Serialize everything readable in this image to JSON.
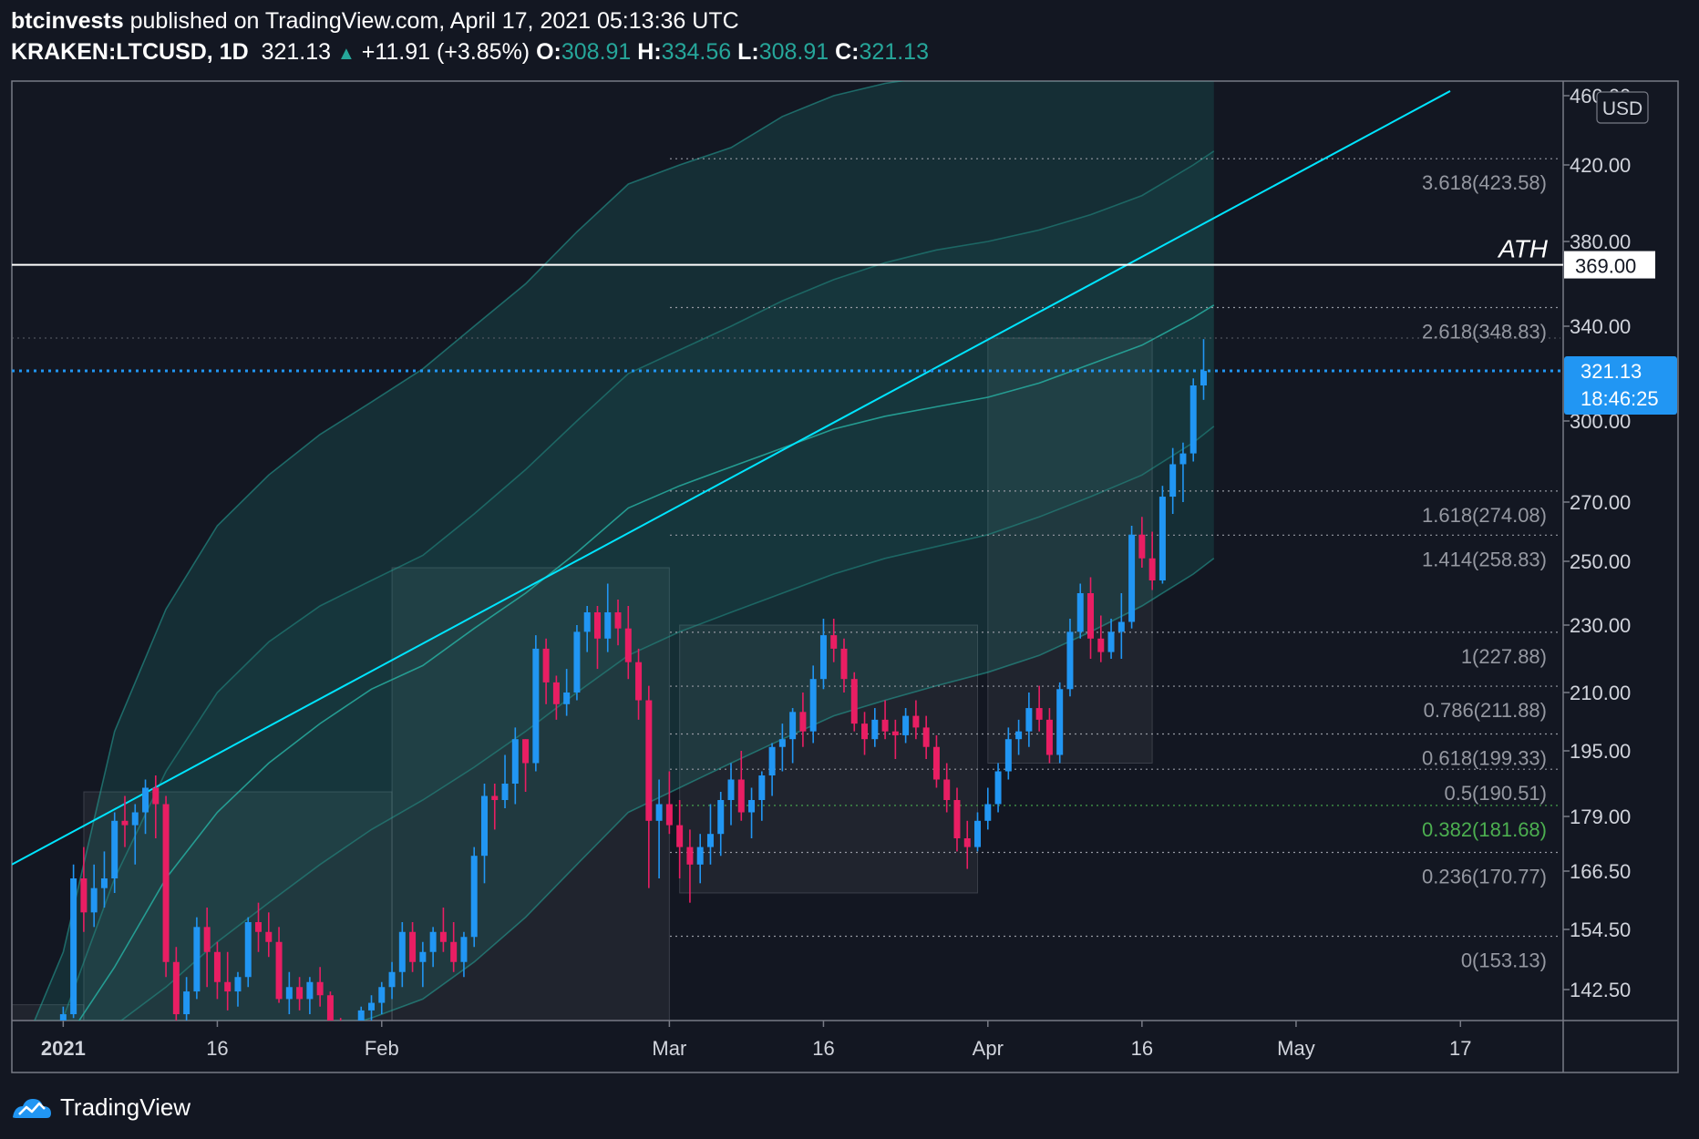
{
  "header": {
    "author": "btcinvests",
    "published_text": "published on TradingView.com, April 17, 2021 05:13:36 UTC",
    "symbol": "KRAKEN:LTCUSD, 1D",
    "last": "321.13",
    "change": "+11.91 (+3.85%)",
    "o_label": "O:",
    "o": "308.91",
    "h_label": "H:",
    "h": "334.56",
    "l_label": "L:",
    "l": "308.91",
    "c_label": "C:",
    "c": "321.13"
  },
  "footer": {
    "brand": "TradingView",
    "logo_icon": "tradingview-logo-icon"
  },
  "chart_data": {
    "type": "candlestick",
    "currency": "USD",
    "y_ticks": [
      142.5,
      154.5,
      166.5,
      179,
      195,
      210,
      230,
      250,
      270,
      300,
      340,
      380,
      420,
      460
    ],
    "y_tick_labels": [
      "142.50",
      "154.50",
      "166.50",
      "179.00",
      "195.00",
      "210.00",
      "230.00",
      "250.00",
      "270.00",
      "300.00",
      "340.00",
      "380.00",
      "420.00",
      "460.00"
    ],
    "x_ticks": [
      {
        "day": 0,
        "label": "2021"
      },
      {
        "day": 15,
        "label": "16"
      },
      {
        "day": 31,
        "label": "Feb"
      },
      {
        "day": 59,
        "label": "Mar"
      },
      {
        "day": 74,
        "label": "16"
      },
      {
        "day": 90,
        "label": "Apr"
      },
      {
        "day": 105,
        "label": "16"
      },
      {
        "day": 120,
        "label": "May"
      },
      {
        "day": 136,
        "label": "17"
      }
    ],
    "x_range_days": [
      -5,
      146
    ],
    "ath": {
      "label": "ATH",
      "value": 369,
      "value_label": "369.00"
    },
    "last_price": {
      "value": 321.13,
      "label": "321.13",
      "countdown": "18:46:25"
    },
    "fib_levels": [
      {
        "ratio": "0",
        "value": 153.13,
        "label": "0(153.13)"
      },
      {
        "ratio": "0.236",
        "value": 170.77,
        "label": "0.236(170.77)"
      },
      {
        "ratio": "0.382",
        "value": 181.68,
        "label": "0.382(181.68)"
      },
      {
        "ratio": "0.5",
        "value": 190.51,
        "label": "0.5(190.51)"
      },
      {
        "ratio": "0.618",
        "value": 199.33,
        "label": "0.618(199.33)"
      },
      {
        "ratio": "0.786",
        "value": 211.88,
        "label": "0.786(211.88)"
      },
      {
        "ratio": "1",
        "value": 227.88,
        "label": "1(227.88)"
      },
      {
        "ratio": "1.414",
        "value": 258.83,
        "label": "1.414(258.83)"
      },
      {
        "ratio": "1.618",
        "value": 274.08,
        "label": "1.618(274.08)"
      },
      {
        "ratio": "2.618",
        "value": 348.83,
        "label": "2.618(348.83)"
      },
      {
        "ratio": "3.618",
        "value": 423.58,
        "label": "3.618(423.58)"
      }
    ],
    "trendline": {
      "from": {
        "day": -5,
        "value": 168
      },
      "to": {
        "day": 135,
        "value": 463
      }
    },
    "boxes": [
      {
        "d0": -5,
        "d1": 2,
        "p0": 130,
        "p1": 138.5
      },
      {
        "d0": 2,
        "d1": 32,
        "p0": 130,
        "p1": 185
      },
      {
        "d0": 32,
        "d1": 59,
        "p0": 130,
        "p1": 248
      },
      {
        "d0": 60,
        "d1": 89,
        "p0": 162,
        "p1": 230
      },
      {
        "d0": 90,
        "d1": 106,
        "p0": 192,
        "p1": 335
      }
    ],
    "candles": [
      [
        -4,
        134,
        134,
        130,
        132
      ],
      [
        -3,
        132,
        133,
        129,
        131
      ],
      [
        -2,
        131,
        132,
        128,
        130
      ],
      [
        -1,
        130,
        131,
        127,
        129
      ],
      [
        0,
        129,
        138,
        128,
        136
      ],
      [
        1,
        136,
        168,
        135,
        165
      ],
      [
        2,
        165,
        172,
        154,
        158
      ],
      [
        3,
        158,
        168,
        155,
        163
      ],
      [
        4,
        163,
        171,
        159,
        165
      ],
      [
        5,
        165,
        180,
        162,
        178
      ],
      [
        6,
        178,
        184,
        172,
        177
      ],
      [
        7,
        177,
        182,
        168,
        180
      ],
      [
        8,
        180,
        188,
        175,
        186
      ],
      [
        9,
        186,
        189,
        174,
        182
      ],
      [
        10,
        182,
        184,
        145,
        148
      ],
      [
        11,
        148,
        151,
        131,
        136
      ],
      [
        12,
        136,
        145,
        130,
        142
      ],
      [
        13,
        142,
        157,
        140,
        155
      ],
      [
        14,
        155,
        159,
        143,
        150
      ],
      [
        15,
        150,
        152,
        140,
        144
      ],
      [
        16,
        144,
        150,
        137,
        142
      ],
      [
        17,
        142,
        146,
        138,
        145
      ],
      [
        18,
        145,
        157,
        143,
        156
      ],
      [
        19,
        156,
        160,
        150,
        154
      ],
      [
        20,
        154,
        158,
        149,
        152
      ],
      [
        21,
        152,
        155,
        139,
        140
      ],
      [
        22,
        140,
        146,
        136,
        143
      ],
      [
        23,
        143,
        145,
        137,
        140
      ],
      [
        24,
        140,
        145,
        136,
        144
      ],
      [
        25,
        144,
        147,
        138,
        141
      ],
      [
        26,
        141,
        142,
        130,
        132
      ],
      [
        27,
        132,
        135,
        128,
        131
      ],
      [
        28,
        131,
        134,
        127,
        133
      ],
      [
        29,
        133,
        138,
        131,
        137
      ],
      [
        30,
        137,
        141,
        134,
        139
      ],
      [
        31,
        139,
        144,
        136,
        143
      ],
      [
        32,
        143,
        148,
        140,
        146
      ],
      [
        33,
        146,
        156,
        143,
        154
      ],
      [
        34,
        154,
        156,
        146,
        148
      ],
      [
        35,
        148,
        152,
        143,
        150
      ],
      [
        36,
        150,
        155,
        147,
        154
      ],
      [
        37,
        154,
        159,
        150,
        152
      ],
      [
        38,
        152,
        156,
        146,
        148
      ],
      [
        39,
        148,
        154,
        145,
        153
      ],
      [
        40,
        153,
        172,
        151,
        170
      ],
      [
        41,
        170,
        187,
        164,
        184
      ],
      [
        42,
        184,
        187,
        176,
        183
      ],
      [
        43,
        183,
        194,
        181,
        187
      ],
      [
        44,
        187,
        201,
        182,
        198
      ],
      [
        45,
        198,
        198,
        185,
        192
      ],
      [
        46,
        192,
        227,
        190,
        223
      ],
      [
        47,
        223,
        226,
        207,
        213
      ],
      [
        48,
        213,
        215,
        203,
        207
      ],
      [
        49,
        207,
        217,
        204,
        210
      ],
      [
        50,
        210,
        230,
        208,
        228
      ],
      [
        51,
        228,
        236,
        222,
        234
      ],
      [
        52,
        234,
        236,
        217,
        226
      ],
      [
        53,
        226,
        243,
        222,
        234
      ],
      [
        54,
        234,
        238,
        224,
        229
      ],
      [
        55,
        229,
        236,
        214,
        219
      ],
      [
        56,
        219,
        223,
        203,
        208
      ],
      [
        57,
        208,
        212,
        163,
        178
      ],
      [
        58,
        178,
        188,
        165,
        182
      ],
      [
        59,
        182,
        190,
        175,
        177
      ],
      [
        60,
        177,
        183,
        165,
        172
      ],
      [
        61,
        172,
        176,
        160,
        168
      ],
      [
        62,
        168,
        175,
        164,
        172
      ],
      [
        63,
        172,
        182,
        168,
        175
      ],
      [
        64,
        175,
        185,
        170,
        183
      ],
      [
        65,
        183,
        192,
        177,
        188
      ],
      [
        66,
        188,
        195,
        178,
        180
      ],
      [
        67,
        180,
        186,
        174,
        183
      ],
      [
        68,
        183,
        190,
        178,
        189
      ],
      [
        69,
        189,
        197,
        184,
        196
      ],
      [
        70,
        196,
        202,
        190,
        198
      ],
      [
        71,
        198,
        206,
        192,
        205
      ],
      [
        72,
        205,
        210,
        196,
        200
      ],
      [
        73,
        200,
        218,
        197,
        214
      ],
      [
        74,
        214,
        232,
        211,
        227
      ],
      [
        75,
        227,
        232,
        219,
        223
      ],
      [
        76,
        223,
        226,
        210,
        214
      ],
      [
        77,
        214,
        216,
        200,
        202
      ],
      [
        78,
        202,
        205,
        194,
        198
      ],
      [
        79,
        198,
        206,
        196,
        203
      ],
      [
        80,
        203,
        208,
        198,
        200
      ],
      [
        81,
        200,
        203,
        193,
        199
      ],
      [
        82,
        199,
        206,
        197,
        204
      ],
      [
        83,
        204,
        208,
        198,
        201
      ],
      [
        84,
        201,
        204,
        193,
        196
      ],
      [
        85,
        196,
        199,
        186,
        188
      ],
      [
        86,
        188,
        192,
        180,
        183
      ],
      [
        87,
        183,
        186,
        171,
        174
      ],
      [
        88,
        174,
        178,
        167,
        172
      ],
      [
        89,
        172,
        180,
        171,
        178
      ],
      [
        90,
        178,
        186,
        176,
        182
      ],
      [
        91,
        182,
        192,
        180,
        190
      ],
      [
        92,
        190,
        201,
        188,
        198
      ],
      [
        93,
        198,
        203,
        194,
        200
      ],
      [
        94,
        200,
        210,
        196,
        206
      ],
      [
        95,
        206,
        212,
        200,
        203
      ],
      [
        96,
        203,
        206,
        192,
        194
      ],
      [
        97,
        194,
        213,
        192,
        211
      ],
      [
        98,
        211,
        232,
        209,
        228
      ],
      [
        99,
        228,
        243,
        226,
        240
      ],
      [
        100,
        240,
        245,
        220,
        226
      ],
      [
        101,
        226,
        233,
        219,
        222
      ],
      [
        102,
        222,
        232,
        220,
        228
      ],
      [
        103,
        228,
        240,
        220,
        231
      ],
      [
        104,
        231,
        262,
        229,
        259
      ],
      [
        105,
        259,
        265,
        248,
        251
      ],
      [
        106,
        251,
        260,
        241,
        244
      ],
      [
        107,
        244,
        276,
        243,
        272
      ],
      [
        108,
        272,
        290,
        266,
        284
      ],
      [
        109,
        284,
        292,
        270,
        288
      ],
      [
        110,
        288,
        318,
        285,
        315
      ],
      [
        111,
        315,
        334.56,
        308.91,
        321.13
      ]
    ],
    "band_upper": [
      [
        -5,
        120
      ],
      [
        0,
        150
      ],
      [
        5,
        200
      ],
      [
        10,
        235
      ],
      [
        15,
        262
      ],
      [
        20,
        280
      ],
      [
        25,
        295
      ],
      [
        30,
        308
      ],
      [
        35,
        322
      ],
      [
        40,
        340
      ],
      [
        45,
        360
      ],
      [
        50,
        385
      ],
      [
        55,
        410
      ],
      [
        60,
        420
      ],
      [
        65,
        430
      ],
      [
        70,
        448
      ],
      [
        75,
        460
      ],
      [
        80,
        468
      ],
      [
        85,
        473
      ],
      [
        90,
        476
      ],
      [
        95,
        480
      ],
      [
        100,
        490
      ],
      [
        105,
        502
      ],
      [
        110,
        520
      ],
      [
        112,
        530
      ]
    ],
    "band_mid2": [
      [
        -5,
        120
      ],
      [
        0,
        135
      ],
      [
        5,
        165
      ],
      [
        10,
        190
      ],
      [
        15,
        210
      ],
      [
        20,
        225
      ],
      [
        25,
        236
      ],
      [
        30,
        244
      ],
      [
        35,
        252
      ],
      [
        40,
        266
      ],
      [
        45,
        282
      ],
      [
        50,
        300
      ],
      [
        55,
        320
      ],
      [
        60,
        330
      ],
      [
        65,
        340
      ],
      [
        70,
        352
      ],
      [
        75,
        362
      ],
      [
        80,
        370
      ],
      [
        85,
        376
      ],
      [
        90,
        380
      ],
      [
        95,
        386
      ],
      [
        100,
        394
      ],
      [
        105,
        404
      ],
      [
        110,
        420
      ],
      [
        112,
        428
      ]
    ],
    "band_mid": [
      [
        -5,
        120
      ],
      [
        0,
        128
      ],
      [
        5,
        147
      ],
      [
        10,
        165
      ],
      [
        15,
        180
      ],
      [
        20,
        192
      ],
      [
        25,
        202
      ],
      [
        30,
        211
      ],
      [
        35,
        218
      ],
      [
        40,
        229
      ],
      [
        45,
        240
      ],
      [
        50,
        253
      ],
      [
        55,
        268
      ],
      [
        60,
        276
      ],
      [
        65,
        283
      ],
      [
        70,
        290
      ],
      [
        75,
        297
      ],
      [
        80,
        302
      ],
      [
        85,
        306
      ],
      [
        90,
        310
      ],
      [
        95,
        316
      ],
      [
        100,
        324
      ],
      [
        105,
        332
      ],
      [
        110,
        344
      ],
      [
        112,
        350
      ]
    ],
    "band_low": [
      [
        -5,
        120
      ],
      [
        0,
        123
      ],
      [
        5,
        133
      ],
      [
        10,
        143
      ],
      [
        15,
        152
      ],
      [
        20,
        160
      ],
      [
        25,
        168
      ],
      [
        30,
        176
      ],
      [
        35,
        183
      ],
      [
        40,
        191
      ],
      [
        45,
        200
      ],
      [
        50,
        210
      ],
      [
        55,
        221
      ],
      [
        60,
        228
      ],
      [
        65,
        234
      ],
      [
        70,
        240
      ],
      [
        75,
        246
      ],
      [
        80,
        251
      ],
      [
        85,
        255
      ],
      [
        90,
        259
      ],
      [
        95,
        265
      ],
      [
        100,
        272
      ],
      [
        105,
        280
      ],
      [
        110,
        292
      ],
      [
        112,
        298
      ]
    ],
    "band_lower": [
      [
        -5,
        120
      ],
      [
        0,
        118
      ],
      [
        5,
        120
      ],
      [
        10,
        122
      ],
      [
        15,
        125
      ],
      [
        20,
        128
      ],
      [
        25,
        131
      ],
      [
        30,
        135
      ],
      [
        35,
        140
      ],
      [
        40,
        148
      ],
      [
        45,
        157
      ],
      [
        50,
        168
      ],
      [
        55,
        180
      ],
      [
        60,
        186
      ],
      [
        65,
        192
      ],
      [
        70,
        198
      ],
      [
        75,
        204
      ],
      [
        80,
        208
      ],
      [
        85,
        212
      ],
      [
        90,
        216
      ],
      [
        95,
        221
      ],
      [
        100,
        228
      ],
      [
        105,
        236
      ],
      [
        110,
        246
      ],
      [
        112,
        251
      ]
    ]
  }
}
